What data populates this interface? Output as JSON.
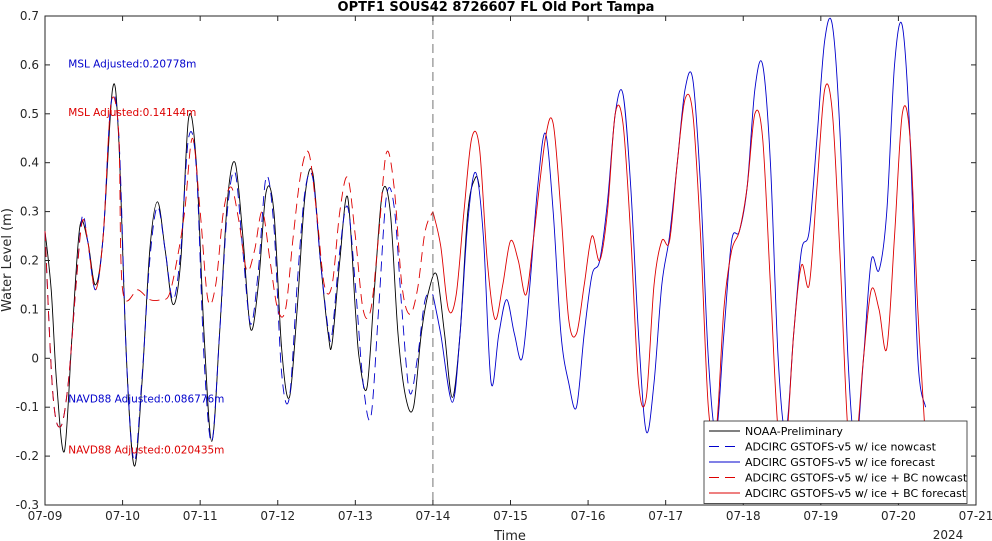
{
  "chart_data": {
    "type": "line",
    "title": "OPTF1 SOUS42 8726607 FL Old Port Tampa",
    "xlabel": "Time",
    "ylabel": "Water Level (m)",
    "xlim": [
      0,
      12
    ],
    "ylim": [
      -0.3,
      0.7
    ],
    "x_ticks": [
      0,
      1,
      2,
      3,
      4,
      5,
      6,
      7,
      8,
      9,
      10,
      11,
      12
    ],
    "x_tick_labels": [
      "07-09",
      "07-10",
      "07-11",
      "07-12",
      "07-13",
      "07-14",
      "07-15",
      "07-16",
      "07-17",
      "07-18",
      "07-19",
      "07-20",
      "07-21"
    ],
    "x_year_label": "2024",
    "y_ticks": [
      -0.3,
      -0.2,
      -0.1,
      0,
      0.1,
      0.2,
      0.3,
      0.4,
      0.5,
      0.6,
      0.7
    ],
    "y_tick_labels": [
      "-0.3",
      "-0.2",
      "-0.1",
      "0",
      "0.1",
      "0.2",
      "0.3",
      "0.4",
      "0.5",
      "0.6",
      "0.7"
    ],
    "nowcast_forecast_divider_x": 5,
    "grid": false,
    "legend_position": "bottom-right",
    "annotations": [
      {
        "text": "MSL Adjusted:0.20778m",
        "color": "#0000cc",
        "x": 0.3,
        "y": 0.595
      },
      {
        "text": "MSL Adjusted:0.14144m",
        "color": "#dd0000",
        "x": 0.3,
        "y": 0.495
      },
      {
        "text": "NAVD88 Adjusted:0.086776m",
        "color": "#0000cc",
        "x": 0.3,
        "y": -0.09
      },
      {
        "text": "NAVD88 Adjusted:0.020435m",
        "color": "#dd0000",
        "x": 0.3,
        "y": -0.195
      }
    ],
    "series": [
      {
        "name": "NOAA-Preliminary",
        "color": "#000000",
        "dash": "solid",
        "points": [
          [
            0,
            0.26
          ],
          [
            0.08,
            0.14
          ],
          [
            0.15,
            -0.05
          ],
          [
            0.25,
            -0.19
          ],
          [
            0.35,
            0.05
          ],
          [
            0.45,
            0.27
          ],
          [
            0.55,
            0.24
          ],
          [
            0.65,
            0.15
          ],
          [
            0.75,
            0.25
          ],
          [
            0.87,
            0.55
          ],
          [
            0.95,
            0.45
          ],
          [
            1.05,
            0.0
          ],
          [
            1.15,
            -0.22
          ],
          [
            1.25,
            -0.05
          ],
          [
            1.35,
            0.22
          ],
          [
            1.45,
            0.32
          ],
          [
            1.55,
            0.22
          ],
          [
            1.65,
            0.11
          ],
          [
            1.75,
            0.2
          ],
          [
            1.85,
            0.49
          ],
          [
            1.95,
            0.4
          ],
          [
            2.05,
            0.05
          ],
          [
            2.15,
            -0.17
          ],
          [
            2.25,
            0.05
          ],
          [
            2.35,
            0.32
          ],
          [
            2.45,
            0.4
          ],
          [
            2.55,
            0.25
          ],
          [
            2.65,
            0.06
          ],
          [
            2.75,
            0.15
          ],
          [
            2.85,
            0.34
          ],
          [
            2.95,
            0.3
          ],
          [
            3.05,
            0.02
          ],
          [
            3.15,
            -0.08
          ],
          [
            3.25,
            0.1
          ],
          [
            3.35,
            0.33
          ],
          [
            3.45,
            0.38
          ],
          [
            3.55,
            0.2
          ],
          [
            3.65,
            0.05
          ],
          [
            3.7,
            0.03
          ],
          [
            3.8,
            0.2
          ],
          [
            3.9,
            0.33
          ],
          [
            4.0,
            0.1
          ],
          [
            4.05,
            0.0
          ],
          [
            4.15,
            -0.06
          ],
          [
            4.25,
            0.15
          ],
          [
            4.35,
            0.34
          ],
          [
            4.45,
            0.3
          ],
          [
            4.55,
            0.05
          ],
          [
            4.65,
            -0.08
          ],
          [
            4.75,
            -0.1
          ],
          [
            4.85,
            0.05
          ],
          [
            4.95,
            0.14
          ],
          [
            5.05,
            0.17
          ],
          [
            5.15,
            0.05
          ],
          [
            5.25,
            -0.08
          ],
          [
            5.35,
            0.05
          ],
          [
            5.45,
            0.3
          ],
          [
            5.55,
            0.37
          ],
          [
            5.6,
            0.35
          ]
        ]
      },
      {
        "name": "ADCIRC GSTOFS-v5 w/ ice nowcast",
        "color": "#0000cc",
        "dash": "10,6",
        "points": [
          [
            0,
            0.26
          ],
          [
            0.1,
            -0.07
          ],
          [
            0.2,
            -0.14
          ],
          [
            0.3,
            -0.05
          ],
          [
            0.4,
            0.15
          ],
          [
            0.48,
            0.29
          ],
          [
            0.55,
            0.24
          ],
          [
            0.65,
            0.14
          ],
          [
            0.75,
            0.25
          ],
          [
            0.85,
            0.52
          ],
          [
            0.95,
            0.46
          ],
          [
            1.05,
            0.0
          ],
          [
            1.15,
            -0.21
          ],
          [
            1.25,
            -0.04
          ],
          [
            1.35,
            0.2
          ],
          [
            1.45,
            0.31
          ],
          [
            1.55,
            0.22
          ],
          [
            1.65,
            0.12
          ],
          [
            1.75,
            0.22
          ],
          [
            1.85,
            0.45
          ],
          [
            1.95,
            0.39
          ],
          [
            2.05,
            0.0
          ],
          [
            2.15,
            -0.17
          ],
          [
            2.25,
            0.05
          ],
          [
            2.35,
            0.3
          ],
          [
            2.45,
            0.38
          ],
          [
            2.55,
            0.22
          ],
          [
            2.65,
            0.07
          ],
          [
            2.75,
            0.18
          ],
          [
            2.85,
            0.37
          ],
          [
            2.95,
            0.27
          ],
          [
            3.05,
            -0.03
          ],
          [
            3.15,
            -0.08
          ],
          [
            3.25,
            0.15
          ],
          [
            3.35,
            0.34
          ],
          [
            3.45,
            0.37
          ],
          [
            3.55,
            0.2
          ],
          [
            3.65,
            0.06
          ],
          [
            3.7,
            0.05
          ],
          [
            3.8,
            0.22
          ],
          [
            3.9,
            0.31
          ],
          [
            4.0,
            0.15
          ],
          [
            4.1,
            -0.05
          ],
          [
            4.2,
            -0.12
          ],
          [
            4.3,
            0.1
          ],
          [
            4.4,
            0.33
          ],
          [
            4.5,
            0.31
          ],
          [
            4.6,
            0.1
          ],
          [
            4.7,
            -0.07
          ],
          [
            4.8,
            0.0
          ],
          [
            4.9,
            0.12
          ],
          [
            5.0,
            0.13
          ]
        ]
      },
      {
        "name": "ADCIRC GSTOFS-v5 w/ ice forecast",
        "color": "#0000cc",
        "dash": "solid",
        "points": [
          [
            5.0,
            0.13
          ],
          [
            5.1,
            0.05
          ],
          [
            5.25,
            -0.09
          ],
          [
            5.35,
            0.05
          ],
          [
            5.45,
            0.28
          ],
          [
            5.55,
            0.38
          ],
          [
            5.65,
            0.25
          ],
          [
            5.75,
            -0.05
          ],
          [
            5.85,
            0.05
          ],
          [
            5.95,
            0.12
          ],
          [
            6.05,
            0.05
          ],
          [
            6.15,
            0.0
          ],
          [
            6.25,
            0.15
          ],
          [
            6.35,
            0.35
          ],
          [
            6.45,
            0.46
          ],
          [
            6.55,
            0.3
          ],
          [
            6.65,
            0.05
          ],
          [
            6.75,
            -0.05
          ],
          [
            6.85,
            -0.1
          ],
          [
            6.95,
            0.05
          ],
          [
            7.05,
            0.17
          ],
          [
            7.15,
            0.2
          ],
          [
            7.25,
            0.32
          ],
          [
            7.35,
            0.5
          ],
          [
            7.45,
            0.54
          ],
          [
            7.55,
            0.35
          ],
          [
            7.65,
            0.05
          ],
          [
            7.75,
            -0.15
          ],
          [
            7.85,
            -0.05
          ],
          [
            7.95,
            0.15
          ],
          [
            8.05,
            0.25
          ],
          [
            8.15,
            0.4
          ],
          [
            8.25,
            0.55
          ],
          [
            8.35,
            0.57
          ],
          [
            8.45,
            0.35
          ],
          [
            8.55,
            0.0
          ],
          [
            8.65,
            -0.15
          ],
          [
            8.75,
            0.05
          ],
          [
            8.85,
            0.24
          ],
          [
            8.95,
            0.26
          ],
          [
            9.05,
            0.35
          ],
          [
            9.15,
            0.55
          ],
          [
            9.25,
            0.6
          ],
          [
            9.35,
            0.4
          ],
          [
            9.45,
            0.0
          ],
          [
            9.55,
            -0.15
          ],
          [
            9.65,
            0.05
          ],
          [
            9.75,
            0.22
          ],
          [
            9.85,
            0.26
          ],
          [
            9.95,
            0.45
          ],
          [
            10.05,
            0.65
          ],
          [
            10.15,
            0.68
          ],
          [
            10.25,
            0.45
          ],
          [
            10.35,
            0.0
          ],
          [
            10.45,
            -0.18
          ],
          [
            10.55,
            0.0
          ],
          [
            10.65,
            0.2
          ],
          [
            10.75,
            0.18
          ],
          [
            10.85,
            0.3
          ],
          [
            10.95,
            0.6
          ],
          [
            11.05,
            0.68
          ],
          [
            11.15,
            0.45
          ],
          [
            11.25,
            0.0
          ],
          [
            11.35,
            -0.1
          ]
        ]
      },
      {
        "name": "ADCIRC GSTOFS-v5 w/ ice + BC nowcast",
        "color": "#dd0000",
        "dash": "10,6",
        "points": [
          [
            0,
            0.26
          ],
          [
            0.1,
            -0.07
          ],
          [
            0.2,
            -0.14
          ],
          [
            0.3,
            -0.05
          ],
          [
            0.4,
            0.15
          ],
          [
            0.48,
            0.28
          ],
          [
            0.55,
            0.24
          ],
          [
            0.65,
            0.14
          ],
          [
            0.75,
            0.25
          ],
          [
            0.85,
            0.52
          ],
          [
            0.95,
            0.46
          ],
          [
            1.0,
            0.14
          ],
          [
            1.2,
            0.14
          ],
          [
            1.35,
            0.12
          ],
          [
            1.5,
            0.12
          ],
          [
            1.6,
            0.13
          ],
          [
            1.7,
            0.2
          ],
          [
            1.8,
            0.3
          ],
          [
            1.9,
            0.45
          ],
          [
            2.0,
            0.3
          ],
          [
            2.1,
            0.12
          ],
          [
            2.2,
            0.15
          ],
          [
            2.3,
            0.3
          ],
          [
            2.4,
            0.35
          ],
          [
            2.5,
            0.28
          ],
          [
            2.6,
            0.18
          ],
          [
            2.7,
            0.22
          ],
          [
            2.8,
            0.3
          ],
          [
            2.9,
            0.2
          ],
          [
            3.0,
            0.1
          ],
          [
            3.1,
            0.1
          ],
          [
            3.2,
            0.25
          ],
          [
            3.3,
            0.38
          ],
          [
            3.4,
            0.42
          ],
          [
            3.5,
            0.3
          ],
          [
            3.6,
            0.15
          ],
          [
            3.7,
            0.15
          ],
          [
            3.8,
            0.3
          ],
          [
            3.9,
            0.37
          ],
          [
            4.0,
            0.25
          ],
          [
            4.1,
            0.1
          ],
          [
            4.2,
            0.1
          ],
          [
            4.3,
            0.25
          ],
          [
            4.4,
            0.42
          ],
          [
            4.5,
            0.35
          ],
          [
            4.6,
            0.15
          ],
          [
            4.7,
            0.09
          ],
          [
            4.8,
            0.14
          ],
          [
            4.9,
            0.26
          ],
          [
            5.0,
            0.3
          ]
        ]
      },
      {
        "name": "ADCIRC GSTOFS-v5 w/ ice + BC forecast",
        "color": "#dd0000",
        "dash": "solid",
        "points": [
          [
            5.0,
            0.3
          ],
          [
            5.1,
            0.23
          ],
          [
            5.2,
            0.1
          ],
          [
            5.3,
            0.13
          ],
          [
            5.4,
            0.3
          ],
          [
            5.5,
            0.45
          ],
          [
            5.6,
            0.43
          ],
          [
            5.7,
            0.2
          ],
          [
            5.8,
            0.08
          ],
          [
            5.9,
            0.15
          ],
          [
            6.0,
            0.24
          ],
          [
            6.1,
            0.2
          ],
          [
            6.2,
            0.13
          ],
          [
            6.3,
            0.25
          ],
          [
            6.45,
            0.45
          ],
          [
            6.55,
            0.48
          ],
          [
            6.65,
            0.3
          ],
          [
            6.75,
            0.08
          ],
          [
            6.85,
            0.05
          ],
          [
            6.95,
            0.15
          ],
          [
            7.05,
            0.25
          ],
          [
            7.15,
            0.2
          ],
          [
            7.25,
            0.3
          ],
          [
            7.35,
            0.5
          ],
          [
            7.45,
            0.48
          ],
          [
            7.55,
            0.25
          ],
          [
            7.65,
            -0.05
          ],
          [
            7.75,
            -0.08
          ],
          [
            7.85,
            0.15
          ],
          [
            7.95,
            0.24
          ],
          [
            8.05,
            0.24
          ],
          [
            8.15,
            0.4
          ],
          [
            8.25,
            0.53
          ],
          [
            8.35,
            0.5
          ],
          [
            8.45,
            0.25
          ],
          [
            8.55,
            -0.1
          ],
          [
            8.65,
            -0.15
          ],
          [
            8.75,
            0.1
          ],
          [
            8.85,
            0.22
          ],
          [
            8.95,
            0.26
          ],
          [
            9.05,
            0.35
          ],
          [
            9.15,
            0.5
          ],
          [
            9.25,
            0.45
          ],
          [
            9.35,
            0.15
          ],
          [
            9.45,
            -0.15
          ],
          [
            9.55,
            -0.18
          ],
          [
            9.65,
            0.05
          ],
          [
            9.75,
            0.19
          ],
          [
            9.85,
            0.15
          ],
          [
            9.95,
            0.35
          ],
          [
            10.05,
            0.55
          ],
          [
            10.15,
            0.5
          ],
          [
            10.25,
            0.2
          ],
          [
            10.35,
            -0.15
          ],
          [
            10.45,
            -0.18
          ],
          [
            10.55,
            0.0
          ],
          [
            10.65,
            0.14
          ],
          [
            10.75,
            0.1
          ],
          [
            10.85,
            0.02
          ],
          [
            10.95,
            0.25
          ],
          [
            11.05,
            0.5
          ],
          [
            11.15,
            0.45
          ],
          [
            11.25,
            0.1
          ],
          [
            11.35,
            -0.17
          ]
        ]
      }
    ]
  }
}
